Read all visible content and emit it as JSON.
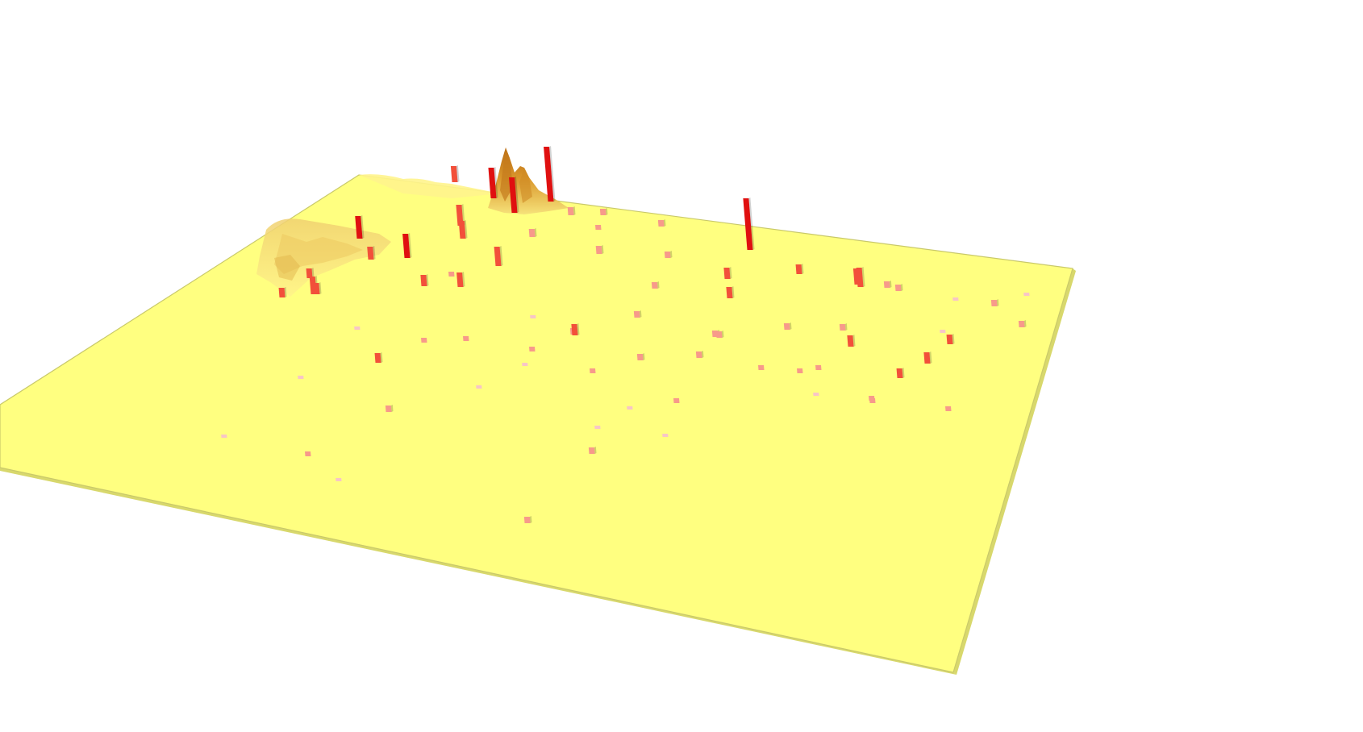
{
  "view": {
    "background": "#ffffff",
    "surface_color": "#ffff80",
    "surface_edge_color": "#c9c96a",
    "terrain_colors": [
      "#f6e27a",
      "#e9c255",
      "#d9962b",
      "#b86a14"
    ],
    "bar_colors": {
      "low": "#f7c6c6",
      "medium": "#f79a8a",
      "high": "#f2503a",
      "max": "#e01010"
    }
  },
  "bars": [
    {
      "level": "max",
      "height": 68
    },
    {
      "level": "max",
      "height": 38
    },
    {
      "level": "max",
      "height": 64
    },
    {
      "level": "max",
      "height": 44
    },
    {
      "level": "max",
      "height": 30
    },
    {
      "level": "max",
      "height": 28
    },
    {
      "level": "high",
      "height": 26
    },
    {
      "level": "high",
      "height": 16
    },
    {
      "level": "high",
      "height": 20
    },
    {
      "level": "high",
      "height": 22
    },
    {
      "level": "high",
      "height": 24
    },
    {
      "level": "high",
      "height": 22
    },
    {
      "level": "high",
      "height": 20
    },
    {
      "level": "high",
      "height": 24
    },
    {
      "level": "high",
      "height": 14
    },
    {
      "level": "high",
      "height": 14
    },
    {
      "level": "high",
      "height": 18
    },
    {
      "level": "high",
      "height": 14
    },
    {
      "level": "high",
      "height": 12
    },
    {
      "level": "high",
      "height": 12
    },
    {
      "level": "high",
      "height": 12
    },
    {
      "level": "high",
      "height": 14
    },
    {
      "level": "high",
      "height": 12
    },
    {
      "level": "high",
      "height": 14
    },
    {
      "level": "high",
      "height": 12
    },
    {
      "level": "high",
      "height": 14
    },
    {
      "level": "high",
      "height": 14
    },
    {
      "level": "high",
      "height": 12
    },
    {
      "level": "medium",
      "height": 10
    },
    {
      "level": "medium",
      "height": 10
    },
    {
      "level": "medium",
      "height": 8
    },
    {
      "level": "medium",
      "height": 10
    },
    {
      "level": "medium",
      "height": 8
    },
    {
      "level": "medium",
      "height": 8
    },
    {
      "level": "medium",
      "height": 8
    },
    {
      "level": "medium",
      "height": 8
    },
    {
      "level": "medium",
      "height": 6
    },
    {
      "level": "medium",
      "height": 8
    },
    {
      "level": "medium",
      "height": 8
    },
    {
      "level": "medium",
      "height": 8
    },
    {
      "level": "medium",
      "height": 8
    },
    {
      "level": "medium",
      "height": 8
    },
    {
      "level": "medium",
      "height": 8
    },
    {
      "level": "medium",
      "height": 8
    },
    {
      "level": "medium",
      "height": 8
    },
    {
      "level": "medium",
      "height": 8
    },
    {
      "level": "medium",
      "height": 6
    },
    {
      "level": "medium",
      "height": 8
    },
    {
      "level": "medium",
      "height": 6
    },
    {
      "level": "medium",
      "height": 6
    },
    {
      "level": "medium",
      "height": 6
    },
    {
      "level": "medium",
      "height": 8
    },
    {
      "level": "medium",
      "height": 6
    },
    {
      "level": "medium",
      "height": 6
    },
    {
      "level": "medium",
      "height": 6
    },
    {
      "level": "medium",
      "height": 6
    },
    {
      "level": "medium",
      "height": 6
    },
    {
      "level": "medium",
      "height": 6
    },
    {
      "level": "medium",
      "height": 8
    },
    {
      "level": "medium",
      "height": 6
    },
    {
      "level": "medium",
      "height": 8
    },
    {
      "level": "medium",
      "height": 8
    },
    {
      "level": "medium",
      "height": 6
    },
    {
      "level": "medium",
      "height": 6
    },
    {
      "level": "low",
      "height": 4
    },
    {
      "level": "low",
      "height": 4
    },
    {
      "level": "low",
      "height": 4
    },
    {
      "level": "low",
      "height": 4
    },
    {
      "level": "low",
      "height": 4
    },
    {
      "level": "low",
      "height": 4
    },
    {
      "level": "low",
      "height": 4
    },
    {
      "level": "low",
      "height": 4
    },
    {
      "level": "low",
      "height": 4
    },
    {
      "level": "low",
      "height": 4
    },
    {
      "level": "low",
      "height": 4
    },
    {
      "level": "low",
      "height": 4
    },
    {
      "level": "low",
      "height": 4
    },
    {
      "level": "low",
      "height": 4
    }
  ]
}
